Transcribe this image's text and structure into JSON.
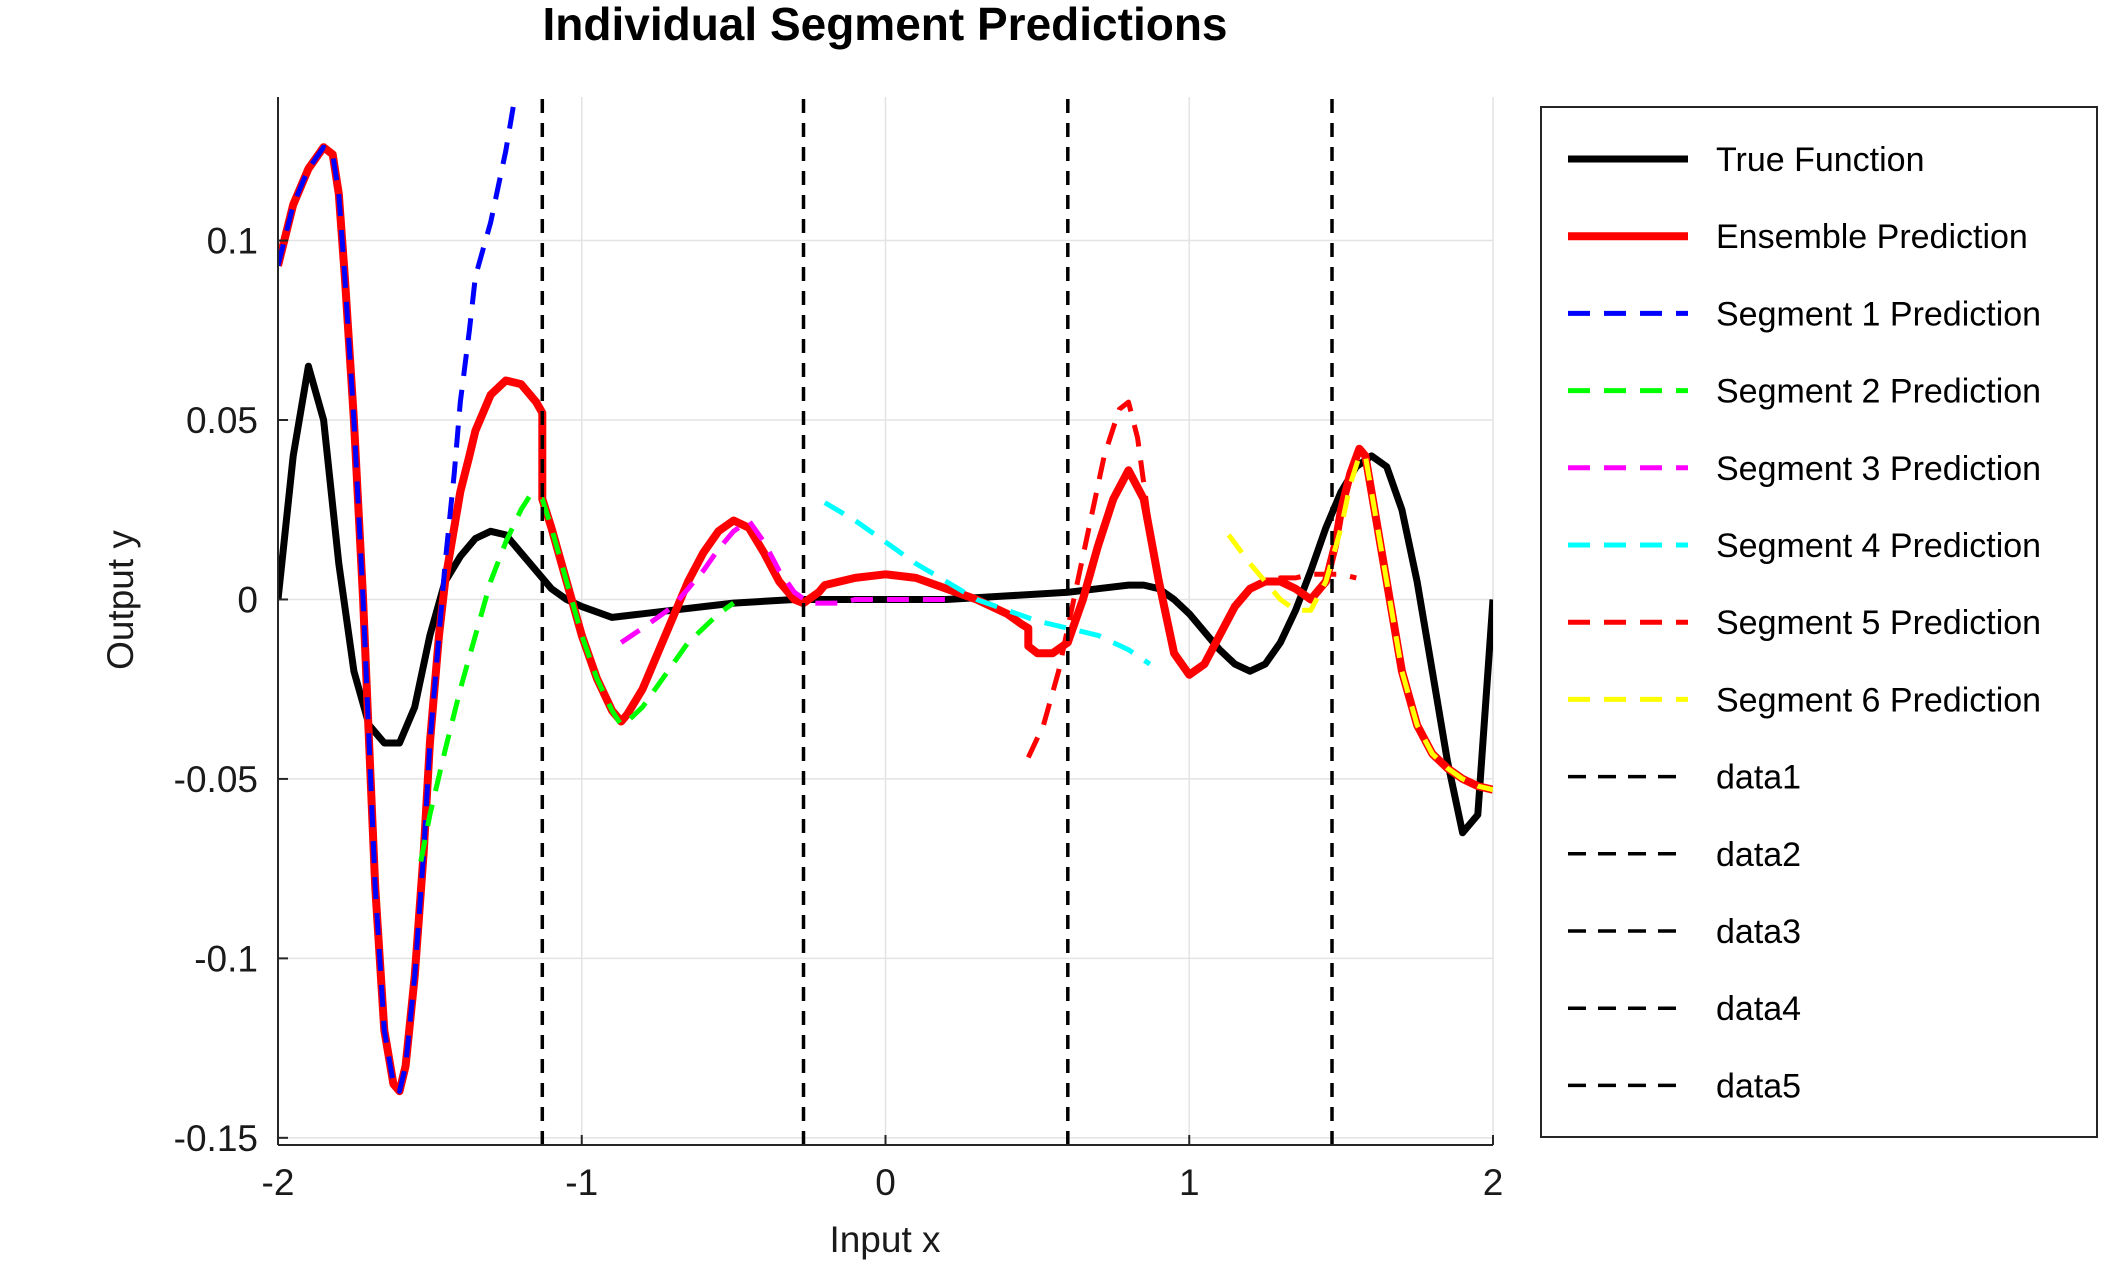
{
  "chart_data": {
    "type": "line",
    "title": "Individual Segment Predictions",
    "xlabel": "Input x",
    "ylabel": "Output y",
    "xlim": [
      -2,
      2
    ],
    "ylim": [
      -0.152,
      0.14
    ],
    "xticks": [
      -2,
      -1,
      0,
      1,
      2
    ],
    "xtick_labels": [
      "-2",
      "-1",
      "0",
      "1",
      "2"
    ],
    "yticks": [
      -0.15,
      -0.1,
      -0.05,
      0,
      0.05,
      0.1
    ],
    "ytick_labels": [
      "-0.15",
      "-0.1",
      "-0.05",
      "0",
      "0.05",
      "0.1"
    ],
    "grid": true,
    "legend_position": "outside-right",
    "series": [
      {
        "name": "True Function",
        "color": "#000000",
        "dash": "solid",
        "width": 7,
        "x": [
          -2.0,
          -1.95,
          -1.9,
          -1.85,
          -1.8,
          -1.75,
          -1.7,
          -1.65,
          -1.6,
          -1.55,
          -1.5,
          -1.45,
          -1.4,
          -1.35,
          -1.3,
          -1.25,
          -1.2,
          -1.15,
          -1.1,
          -1.05,
          -1.0,
          -0.9,
          -0.8,
          -0.7,
          -0.6,
          -0.5,
          -0.3,
          -0.1,
          0.0,
          0.2,
          0.4,
          0.6,
          0.7,
          0.8,
          0.85,
          0.9,
          0.95,
          1.0,
          1.05,
          1.1,
          1.15,
          1.2,
          1.25,
          1.3,
          1.35,
          1.4,
          1.45,
          1.5,
          1.55,
          1.6,
          1.65,
          1.7,
          1.75,
          1.8,
          1.85,
          1.9,
          1.95,
          2.0
        ],
        "y": [
          0.0,
          0.04,
          0.065,
          0.05,
          0.01,
          -0.02,
          -0.035,
          -0.04,
          -0.04,
          -0.03,
          -0.01,
          0.005,
          0.012,
          0.017,
          0.019,
          0.018,
          0.013,
          0.008,
          0.003,
          0.0,
          -0.002,
          -0.005,
          -0.004,
          -0.003,
          -0.002,
          -0.001,
          0.0,
          0.0,
          0.0,
          0.0,
          0.001,
          0.002,
          0.003,
          0.004,
          0.004,
          0.003,
          0.0,
          -0.004,
          -0.009,
          -0.014,
          -0.018,
          -0.02,
          -0.018,
          -0.012,
          -0.003,
          0.008,
          0.02,
          0.03,
          0.037,
          0.04,
          0.037,
          0.025,
          0.005,
          -0.02,
          -0.045,
          -0.065,
          -0.06,
          0.0
        ]
      },
      {
        "name": "Ensemble Prediction",
        "color": "#ff0000",
        "dash": "solid",
        "width": 8,
        "x": [
          -2.0,
          -1.95,
          -1.9,
          -1.85,
          -1.82,
          -1.8,
          -1.78,
          -1.75,
          -1.72,
          -1.7,
          -1.68,
          -1.65,
          -1.62,
          -1.6,
          -1.58,
          -1.55,
          -1.52,
          -1.5,
          -1.47,
          -1.45,
          -1.42,
          -1.4,
          -1.37,
          -1.35,
          -1.3,
          -1.25,
          -1.2,
          -1.15,
          -1.13,
          -1.13,
          -1.1,
          -1.05,
          -1.0,
          -0.95,
          -0.9,
          -0.87,
          -0.85,
          -0.8,
          -0.75,
          -0.7,
          -0.65,
          -0.6,
          -0.55,
          -0.5,
          -0.45,
          -0.4,
          -0.35,
          -0.3,
          -0.27,
          -0.22,
          -0.2,
          -0.15,
          -0.1,
          0.0,
          0.1,
          0.2,
          0.3,
          0.4,
          0.45,
          0.47,
          0.47,
          0.5,
          0.55,
          0.6,
          0.65,
          0.7,
          0.75,
          0.8,
          0.85,
          0.9,
          0.95,
          1.0,
          1.05,
          1.1,
          1.15,
          1.2,
          1.25,
          1.3,
          1.35,
          1.4,
          1.45,
          1.48,
          1.5,
          1.53,
          1.56,
          1.58,
          1.6,
          1.65,
          1.7,
          1.75,
          1.8,
          1.85,
          1.9,
          1.95,
          2.0
        ],
        "y": [
          0.093,
          0.11,
          0.12,
          0.126,
          0.124,
          0.113,
          0.09,
          0.05,
          0.0,
          -0.04,
          -0.08,
          -0.12,
          -0.135,
          -0.137,
          -0.13,
          -0.105,
          -0.07,
          -0.04,
          -0.01,
          0.005,
          0.02,
          0.03,
          0.04,
          0.047,
          0.057,
          0.061,
          0.06,
          0.055,
          0.052,
          0.028,
          0.02,
          0.005,
          -0.01,
          -0.022,
          -0.031,
          -0.034,
          -0.032,
          -0.025,
          -0.015,
          -0.005,
          0.005,
          0.013,
          0.019,
          0.022,
          0.02,
          0.013,
          0.005,
          0.0,
          -0.001,
          0.002,
          0.004,
          0.005,
          0.006,
          0.007,
          0.006,
          0.003,
          0.0,
          -0.004,
          -0.007,
          -0.008,
          -0.013,
          -0.015,
          -0.015,
          -0.012,
          0.0,
          0.015,
          0.028,
          0.036,
          0.028,
          0.005,
          -0.015,
          -0.021,
          -0.018,
          -0.01,
          -0.002,
          0.003,
          0.005,
          0.005,
          0.003,
          0.0,
          0.005,
          0.015,
          0.025,
          0.035,
          0.042,
          0.04,
          0.03,
          0.005,
          -0.02,
          -0.035,
          -0.043,
          -0.047,
          -0.05,
          -0.052,
          -0.053
        ]
      },
      {
        "name": "Segment 1 Prediction",
        "color": "#0000ff",
        "dash": "dashed",
        "width": 5,
        "x": [
          -2.0,
          -1.95,
          -1.9,
          -1.85,
          -1.82,
          -1.8,
          -1.78,
          -1.75,
          -1.72,
          -1.7,
          -1.68,
          -1.65,
          -1.62,
          -1.6,
          -1.58,
          -1.55,
          -1.52,
          -1.5,
          -1.47,
          -1.45,
          -1.42,
          -1.4,
          -1.37,
          -1.35,
          -1.3,
          -1.25,
          -1.22
        ],
        "y": [
          0.093,
          0.11,
          0.12,
          0.126,
          0.124,
          0.113,
          0.09,
          0.05,
          0.0,
          -0.04,
          -0.08,
          -0.12,
          -0.135,
          -0.137,
          -0.13,
          -0.105,
          -0.07,
          -0.04,
          -0.01,
          0.01,
          0.035,
          0.055,
          0.075,
          0.09,
          0.105,
          0.125,
          0.14
        ]
      },
      {
        "name": "Segment 2 Prediction",
        "color": "#00ff00",
        "dash": "dashed",
        "width": 5,
        "x": [
          -1.53,
          -1.5,
          -1.45,
          -1.4,
          -1.35,
          -1.3,
          -1.25,
          -1.2,
          -1.17,
          -1.13,
          -1.1,
          -1.05,
          -1.0,
          -0.95,
          -0.9,
          -0.87,
          -0.85,
          -0.8,
          -0.75,
          -0.7,
          -0.65,
          -0.6,
          -0.55,
          -0.5
        ],
        "y": [
          -0.073,
          -0.06,
          -0.042,
          -0.025,
          -0.01,
          0.005,
          0.016,
          0.025,
          0.029,
          0.028,
          0.02,
          0.005,
          -0.01,
          -0.022,
          -0.031,
          -0.035,
          -0.034,
          -0.03,
          -0.024,
          -0.018,
          -0.012,
          -0.008,
          -0.004,
          -0.001
        ]
      },
      {
        "name": "Segment 3 Prediction",
        "color": "#ff00ff",
        "dash": "dashed",
        "width": 5,
        "x": [
          -0.87,
          -0.8,
          -0.75,
          -0.7,
          -0.65,
          -0.6,
          -0.55,
          -0.5,
          -0.45,
          -0.4,
          -0.35,
          -0.3,
          -0.25,
          -0.2,
          -0.15,
          -0.1,
          -0.05,
          0.0,
          0.05,
          0.1,
          0.15,
          0.2
        ],
        "y": [
          -0.012,
          -0.008,
          -0.005,
          -0.002,
          0.003,
          0.008,
          0.014,
          0.019,
          0.022,
          0.016,
          0.008,
          0.002,
          -0.001,
          -0.001,
          -0.001,
          0.0,
          0.0,
          0.0,
          0.0,
          0.0,
          0.0,
          0.0
        ]
      },
      {
        "name": "Segment 4 Prediction",
        "color": "#00ffff",
        "dash": "dashed",
        "width": 5,
        "x": [
          -0.2,
          -0.1,
          0.0,
          0.1,
          0.2,
          0.3,
          0.4,
          0.5,
          0.6,
          0.7,
          0.8,
          0.87
        ],
        "y": [
          0.027,
          0.022,
          0.016,
          0.01,
          0.005,
          0.0,
          -0.003,
          -0.006,
          -0.008,
          -0.01,
          -0.014,
          -0.018
        ]
      },
      {
        "name": "Segment 5 Prediction",
        "color": "#ff0000",
        "dash": "dashed",
        "width": 5,
        "x": [
          0.47,
          0.52,
          0.57,
          0.62,
          0.67,
          0.72,
          0.77,
          0.8,
          0.83,
          0.87,
          0.9,
          0.95,
          1.0,
          1.05,
          1.1,
          1.15,
          1.2,
          1.25,
          1.3,
          1.35,
          1.4,
          1.45,
          1.5,
          1.55
        ],
        "y": [
          -0.044,
          -0.035,
          -0.02,
          0.0,
          0.02,
          0.04,
          0.053,
          0.055,
          0.045,
          0.02,
          0.005,
          -0.015,
          -0.021,
          -0.018,
          -0.01,
          -0.002,
          0.003,
          0.005,
          0.006,
          0.006,
          0.007,
          0.007,
          0.007,
          0.006
        ]
      },
      {
        "name": "Segment 6 Prediction",
        "color": "#ffff00",
        "dash": "dashed",
        "width": 5,
        "x": [
          1.13,
          1.2,
          1.25,
          1.3,
          1.35,
          1.4,
          1.45,
          1.5,
          1.53,
          1.56,
          1.58,
          1.6,
          1.65,
          1.7,
          1.75,
          1.8,
          1.85,
          1.9,
          1.95,
          2.0
        ],
        "y": [
          0.018,
          0.01,
          0.005,
          0.0,
          -0.003,
          -0.003,
          0.005,
          0.02,
          0.032,
          0.04,
          0.04,
          0.03,
          0.005,
          -0.02,
          -0.035,
          -0.043,
          -0.047,
          -0.05,
          -0.052,
          -0.053
        ]
      },
      {
        "name": "data1",
        "color": "#000000",
        "dash": "dashed",
        "width": 3.5,
        "x": [
          -1.13,
          -1.13
        ],
        "y": [
          -0.152,
          0.14
        ]
      },
      {
        "name": "data2",
        "color": "#000000",
        "dash": "dashed",
        "width": 3.5,
        "x": [
          -0.27,
          -0.27
        ],
        "y": [
          -0.152,
          0.14
        ]
      },
      {
        "name": "data3",
        "color": "#000000",
        "dash": "dashed",
        "width": 3.5,
        "x": [
          0.6,
          0.6
        ],
        "y": [
          -0.152,
          0.14
        ]
      },
      {
        "name": "data4",
        "color": "#000000",
        "dash": "dashed",
        "width": 3.5,
        "x": [
          1.47,
          1.47
        ],
        "y": [
          -0.152,
          0.14
        ]
      },
      {
        "name": "data5",
        "color": "#000000",
        "dash": "dashed",
        "width": 3.5,
        "x": [],
        "y": []
      }
    ]
  }
}
